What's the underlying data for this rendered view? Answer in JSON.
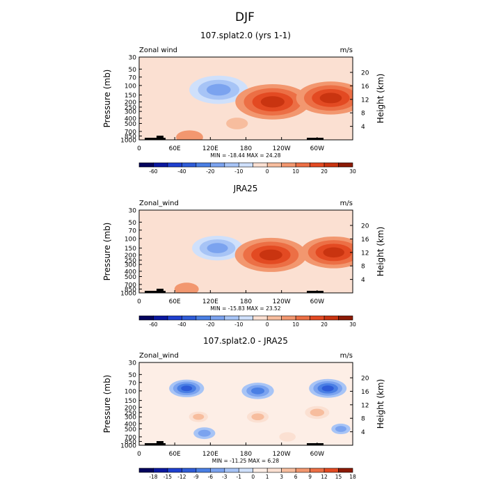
{
  "figure_title": "DJF",
  "chart_data": [
    {
      "type": "heatmap",
      "title": "107.splat2.0 (yrs 1-1)",
      "variable_label": "Zonal wind",
      "units": "m/s",
      "ylabel": "Pressure (mb)",
      "y2label": "Height (km)",
      "x_ticks": [
        "0",
        "60E",
        "120E",
        "180",
        "120W",
        "60W"
      ],
      "p_ticks": [
        "30",
        "50",
        "70",
        "100",
        "150",
        "200",
        "250",
        "300",
        "400",
        "500",
        "700",
        "850",
        "1000"
      ],
      "height_ticks": [
        "4",
        "8",
        "12",
        "16",
        "20"
      ],
      "min_max_label": "MIN = -18.44   MAX =  24.28",
      "min": -18.44,
      "max": 24.28,
      "levels": [
        -70,
        -60,
        -50,
        -40,
        -30,
        -20,
        -15,
        -10,
        -5,
        0,
        5,
        10,
        15,
        20,
        25,
        30
      ],
      "colorbar_labels": [
        "-60",
        "-40",
        "-20",
        "-10",
        "0",
        "10",
        "20",
        "30"
      ],
      "features": [
        {
          "lon": 134,
          "p": 120,
          "value": -18
        },
        {
          "lon": 225,
          "p": 200,
          "value": 24
        },
        {
          "lon": 323,
          "p": 170,
          "value": 22
        },
        {
          "lon": 85,
          "p": 900,
          "value": 6
        },
        {
          "lon": 165,
          "p": 500,
          "value": 4
        },
        {
          "lon": 310,
          "p": 650,
          "value": -4
        }
      ]
    },
    {
      "type": "heatmap",
      "title": "JRA25",
      "variable_label": "Zonal_wind",
      "units": "m/s",
      "ylabel": "Pressure (mb)",
      "y2label": "Height (km)",
      "x_ticks": [
        "0",
        "60E",
        "120E",
        "180",
        "120W",
        "60W"
      ],
      "p_ticks": [
        "30",
        "50",
        "70",
        "100",
        "150",
        "200",
        "250",
        "300",
        "400",
        "500",
        "700",
        "850",
        "1000"
      ],
      "height_ticks": [
        "4",
        "8",
        "12",
        "16",
        "20"
      ],
      "min_max_label": "MIN = -15.83   MAX =  23.52",
      "min": -15.83,
      "max": 23.52,
      "levels": [
        -70,
        -60,
        -50,
        -40,
        -30,
        -20,
        -15,
        -10,
        -5,
        0,
        5,
        10,
        15,
        20,
        25,
        30
      ],
      "colorbar_labels": [
        "-60",
        "-40",
        "-20",
        "-10",
        "0",
        "10",
        "20",
        "30"
      ],
      "features": [
        {
          "lon": 132,
          "p": 150,
          "value": -15
        },
        {
          "lon": 222,
          "p": 200,
          "value": 23
        },
        {
          "lon": 328,
          "p": 180,
          "value": 21
        },
        {
          "lon": 80,
          "p": 850,
          "value": 5
        },
        {
          "lon": 290,
          "p": 700,
          "value": -3
        }
      ]
    },
    {
      "type": "heatmap",
      "title": "107.splat2.0 - JRA25",
      "variable_label": "Zonal_wind",
      "units": "m/s",
      "ylabel": "Pressure (mb)",
      "y2label": "Height (km)",
      "x_ticks": [
        "0",
        "60E",
        "120E",
        "180",
        "120W",
        "60W"
      ],
      "p_ticks": [
        "30",
        "50",
        "70",
        "100",
        "150",
        "200",
        "250",
        "300",
        "400",
        "500",
        "700",
        "850",
        "1000"
      ],
      "height_ticks": [
        "4",
        "8",
        "12",
        "16",
        "20"
      ],
      "min_max_label": "MIN = -11.25   MAX =   6.28",
      "min": -11.25,
      "max": 6.28,
      "levels": [
        -21,
        -18,
        -15,
        -12,
        -9,
        -6,
        -3,
        -1,
        0,
        1,
        3,
        6,
        9,
        12,
        15,
        18
      ],
      "colorbar_labels": [
        "-18",
        "-15",
        "-12",
        "-9",
        "-6",
        "-3",
        "-1",
        "0",
        "1",
        "3",
        "6",
        "9",
        "12",
        "15",
        "18"
      ],
      "features": [
        {
          "lon": 80,
          "p": 90,
          "value": -9
        },
        {
          "lon": 200,
          "p": 100,
          "value": -8
        },
        {
          "lon": 318,
          "p": 90,
          "value": -10
        },
        {
          "lon": 100,
          "p": 300,
          "value": 3
        },
        {
          "lon": 200,
          "p": 300,
          "value": 4
        },
        {
          "lon": 300,
          "p": 250,
          "value": 5
        },
        {
          "lon": 110,
          "p": 600,
          "value": -4
        },
        {
          "lon": 250,
          "p": 700,
          "value": 2
        },
        {
          "lon": 340,
          "p": 500,
          "value": -3
        }
      ]
    }
  ],
  "palettes": {
    "full": [
      "#05055e",
      "#0a18a0",
      "#1e3fcf",
      "#2e5cd8",
      "#4a7fe4",
      "#7ba3ef",
      "#a7c4f6",
      "#cfe0fb",
      "#fbe0d2",
      "#f7bd9e",
      "#f2976f",
      "#ec6f45",
      "#e34a22",
      "#c93410",
      "#8c1a06"
    ],
    "diff": [
      "#05055e",
      "#0a18a0",
      "#1e3fcf",
      "#2e5cd8",
      "#4a7fe4",
      "#7ba3ef",
      "#a7c4f6",
      "#cfe0fb",
      "#fdeee6",
      "#fbe0d2",
      "#f7bd9e",
      "#f2976f",
      "#ec6f45",
      "#e34a22",
      "#8c1a06"
    ]
  }
}
